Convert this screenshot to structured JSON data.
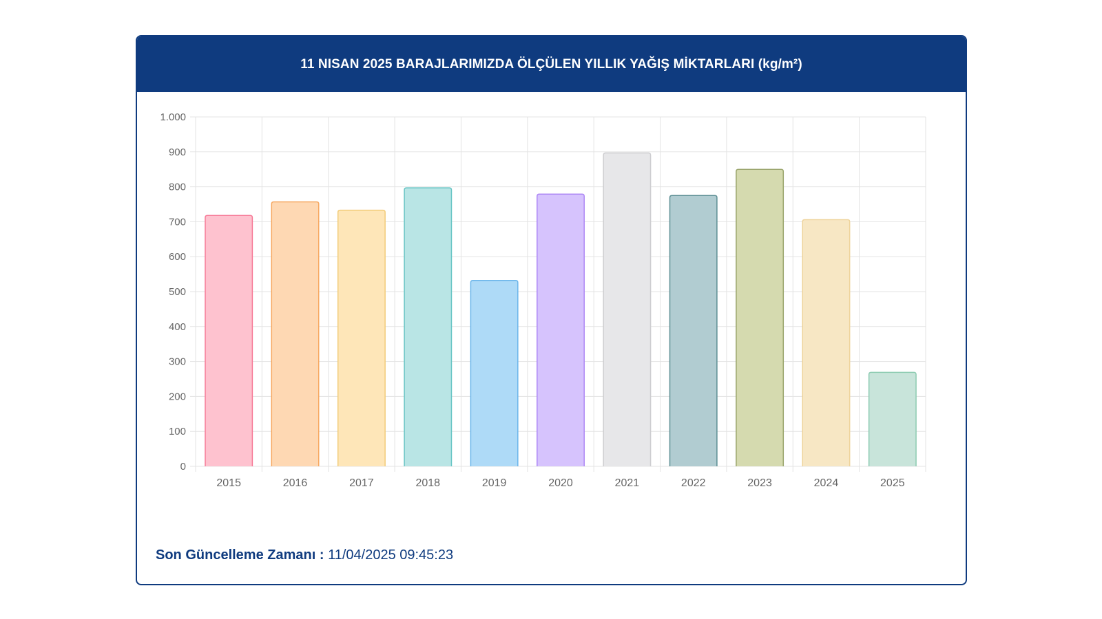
{
  "header": {
    "title": "11 NISAN 2025 BARAJLARIMIZDA ÖLÇÜLEN YILLIK YAĞIŞ MİKTARLARI (kg/m²)"
  },
  "footer": {
    "label": "Son Güncelleme Zamanı :",
    "value": "11/04/2025 09:45:23"
  },
  "colors": {
    "brand": "#0f3b7f",
    "grid": "#e3e3e3",
    "tick_text": "#666666"
  },
  "chart_data": {
    "type": "bar",
    "title": "11 NISAN 2025 BARAJLARIMIZDA ÖLÇÜLEN YILLIK YAĞIŞ MİKTARLARI (kg/m²)",
    "xlabel": "",
    "ylabel": "",
    "ylim": [
      0,
      1000
    ],
    "yticks": [
      0,
      100,
      200,
      300,
      400,
      500,
      600,
      700,
      800,
      900,
      1000
    ],
    "ytick_labels": [
      "0",
      "100",
      "200",
      "300",
      "400",
      "500",
      "600",
      "700",
      "800",
      "900",
      "1.000"
    ],
    "grid": true,
    "categories": [
      "2015",
      "2016",
      "2017",
      "2018",
      "2019",
      "2020",
      "2021",
      "2022",
      "2023",
      "2024",
      "2025"
    ],
    "values": [
      718,
      757,
      733,
      797,
      532,
      779,
      897,
      775,
      850,
      706,
      269
    ],
    "fill_colors": [
      "#fec2cf",
      "#fed8b3",
      "#fee6b8",
      "#b9e5e5",
      "#aedaf7",
      "#d6c3fd",
      "#e7e7e9",
      "#b1ccd1",
      "#d5daaf",
      "#f7e7c4",
      "#c8e4da"
    ],
    "border_colors": [
      "#f67a97",
      "#f6a860",
      "#f2cc78",
      "#66c4c4",
      "#6bb5ea",
      "#ad87f5",
      "#cdcdd0",
      "#5d8f94",
      "#9aa56c",
      "#eed39a",
      "#8ccbb1"
    ]
  }
}
